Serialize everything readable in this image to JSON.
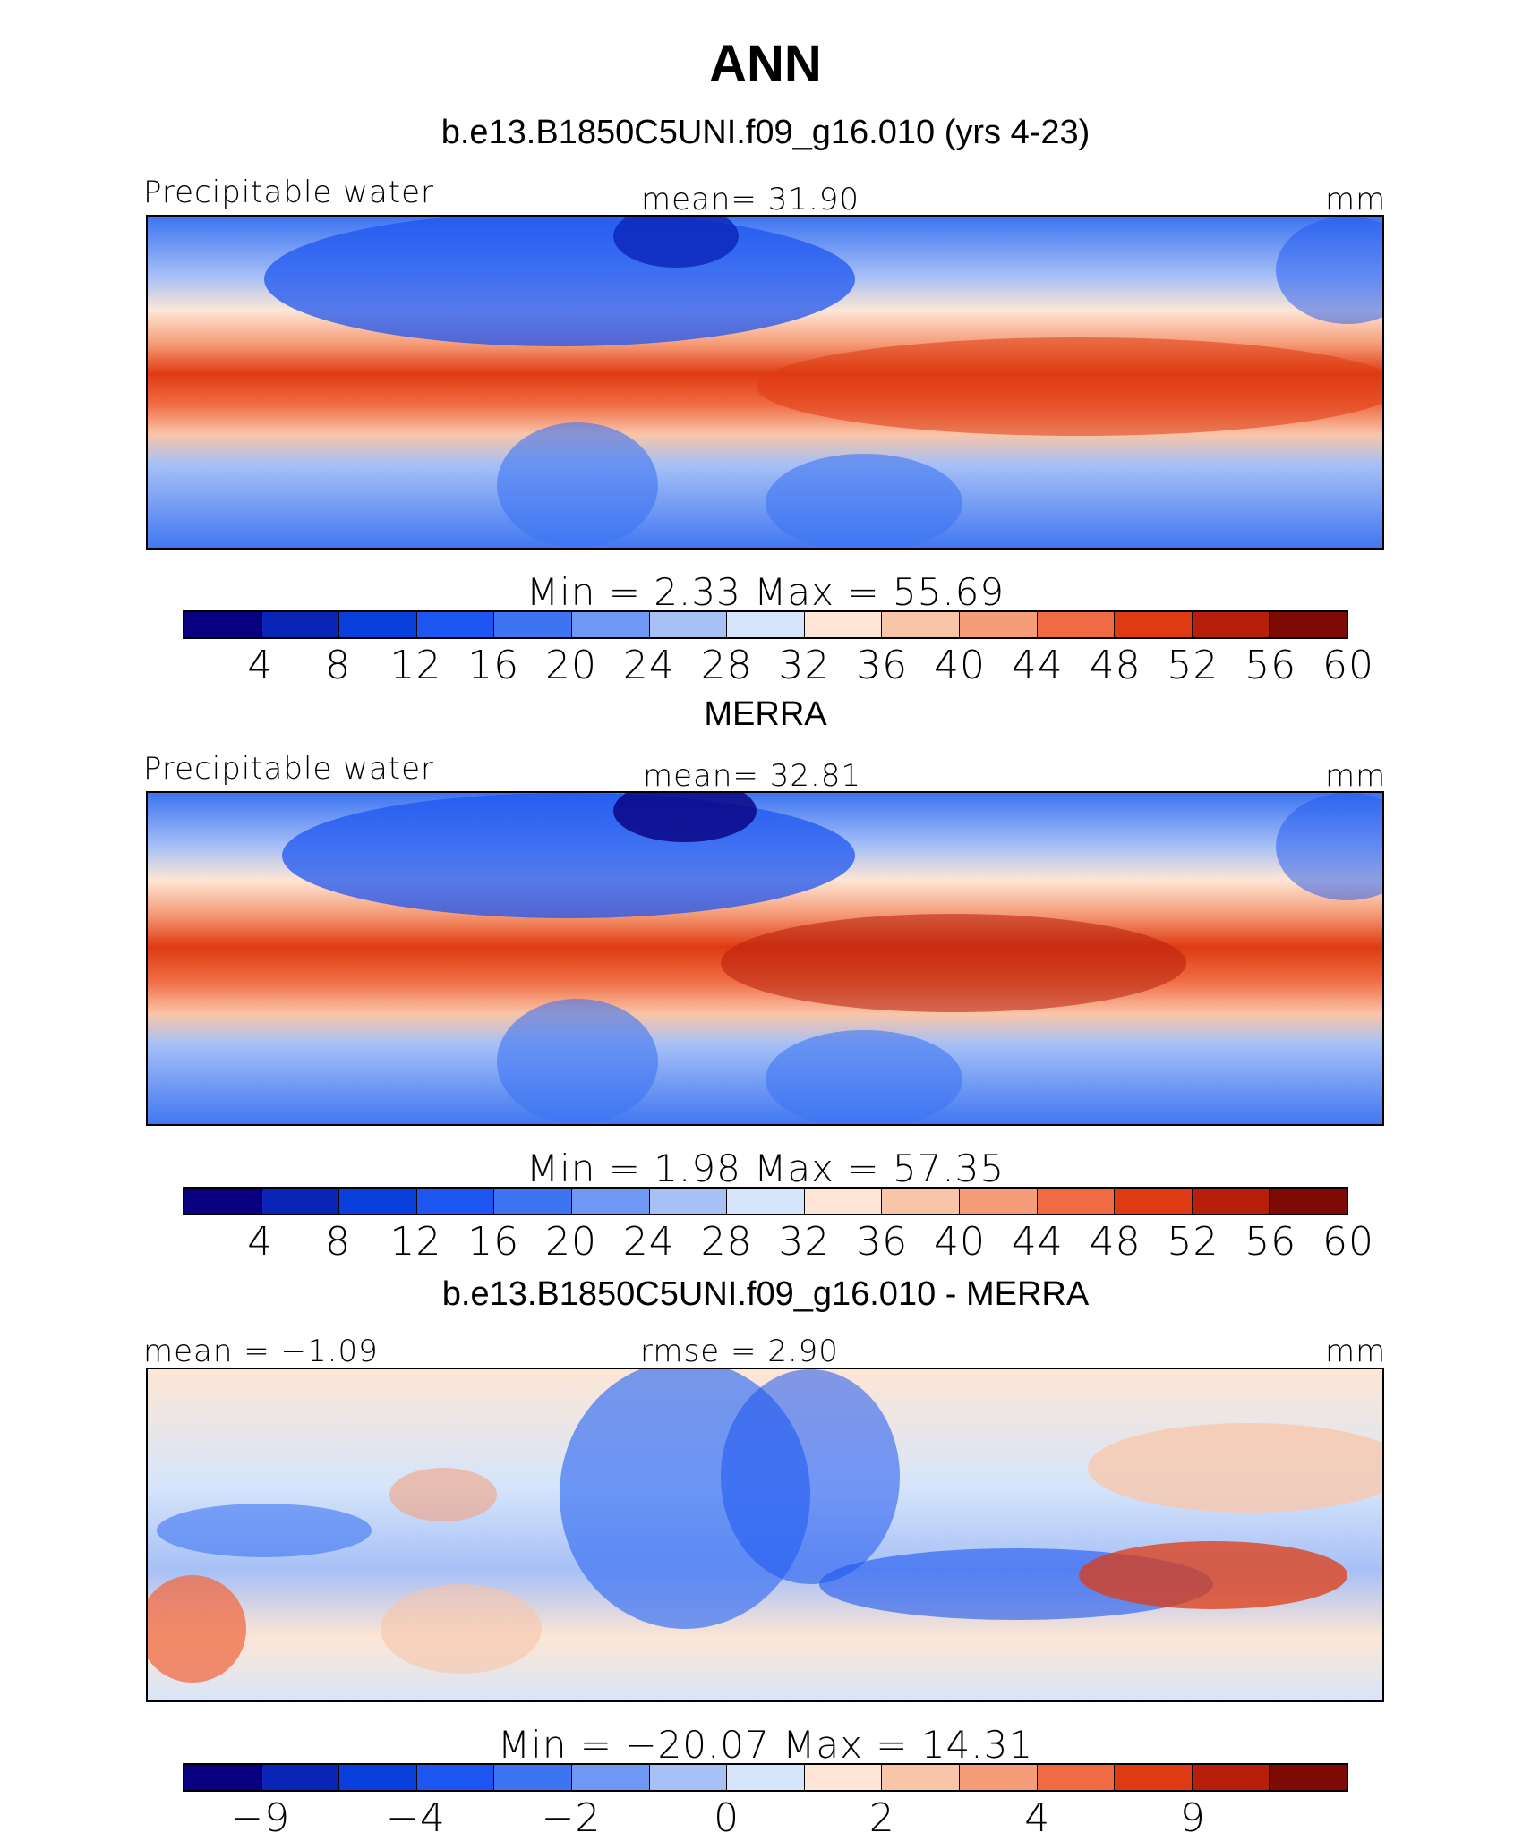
{
  "title": "ANN",
  "colors": {
    "abs": [
      "#08007f",
      "#0a24b8",
      "#0a3fdc",
      "#1d56f0",
      "#3d74f2",
      "#6e98f4",
      "#a7c0f6",
      "#d6e5fa",
      "#fde6d5",
      "#f9c5a8",
      "#f59c78",
      "#f06b43",
      "#df3b12",
      "#b71f0b",
      "#7d0a05"
    ],
    "diff": [
      "#08007f",
      "#0a24b8",
      "#0a3fdc",
      "#1d56f0",
      "#3d74f2",
      "#6e98f4",
      "#a7c0f6",
      "#d6e5fa",
      "#fde6d5",
      "#f9c5a8",
      "#f59c78",
      "#f06b43",
      "#df3b12",
      "#b71f0b",
      "#7d0a05"
    ]
  },
  "panels": [
    {
      "title": "b.e13.B1850C5UNI.f09_g16.010 (yrs 4-23)",
      "left_label": "Precipitable water",
      "center_label": "mean=   31.90",
      "units": "mm",
      "minmax": "Min  =     2.33  Max  =    55.69",
      "min": 2.33,
      "max": 55.69,
      "mean": 31.9,
      "ticks": [
        "4",
        "8",
        "12",
        "16",
        "20",
        "24",
        "28",
        "32",
        "36",
        "40",
        "44",
        "48",
        "52",
        "56",
        "60"
      ]
    },
    {
      "title": "MERRA",
      "left_label": "Precipitable water",
      "center_label": "mean=   32.81",
      "units": "mm",
      "minmax": "Min  =     1.98  Max  =    57.35",
      "min": 1.98,
      "max": 57.35,
      "mean": 32.81,
      "ticks": [
        "4",
        "8",
        "12",
        "16",
        "20",
        "24",
        "28",
        "32",
        "36",
        "40",
        "44",
        "48",
        "52",
        "56",
        "60"
      ]
    },
    {
      "title": "b.e13.B1850C5UNI.f09_g16.010 - MERRA",
      "left_label": "mean  =   −1.09",
      "center_label": "rmse  =    2.90",
      "units": "mm",
      "minmax": "Min  =  −20.07  Max  =    14.31",
      "min": -20.07,
      "max": 14.31,
      "mean": -1.09,
      "rmse": 2.9,
      "ticks": [
        "−9",
        "−4",
        "−2",
        "0",
        "2",
        "4",
        "9"
      ]
    }
  ]
}
